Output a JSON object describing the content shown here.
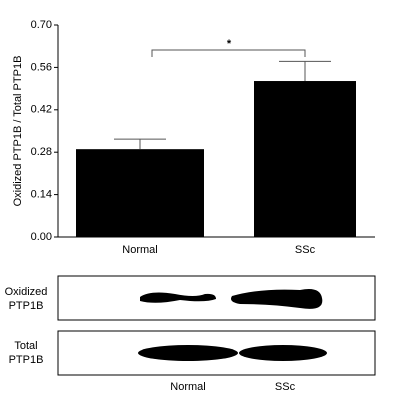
{
  "chart_data": {
    "type": "bar",
    "y_label": "Oxidized PTP1B / Total PTP1B",
    "categories": [
      "Normal",
      "SSc"
    ],
    "values": [
      0.29,
      0.515
    ],
    "errors": [
      0.033,
      0.065
    ],
    "color": "#000000",
    "ylim": [
      0,
      0.7
    ],
    "yticks": [
      {
        "value": 0,
        "label": "0.00"
      },
      0.14,
      0.28,
      0.42,
      0.56,
      {
        "value": 0.7,
        "label": "0.70"
      }
    ],
    "annotation": "*"
  },
  "blot": {
    "rows": [
      [
        "Oxidized",
        "PTP1B"
      ],
      [
        "Total",
        "PTP1B"
      ]
    ],
    "lanes": [
      "Normal",
      "SSc"
    ]
  }
}
